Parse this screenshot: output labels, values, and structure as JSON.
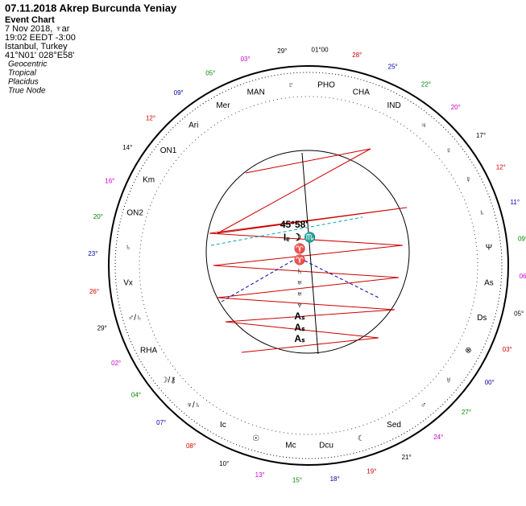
{
  "header": {
    "title": "07.11.2018 Akrep Burcunda Yeniay",
    "subtitle": "Event Chart",
    "date": "7 Nov 2018, ♆ar",
    "time": "19:02  EEDT  -3:00",
    "place": "Istanbul, Turkey",
    "coords": "41°N01' 028°E58'",
    "settings": [
      "Geocentric",
      "Tropical",
      "Placidus",
      "True Node"
    ]
  },
  "center_label": "45°58'",
  "points": [
    "PHO",
    "CHA",
    "IND",
    "♃",
    "♀",
    "☿",
    "♄",
    "Ψ",
    "As",
    "Ds",
    "⊗",
    "♅",
    "♂",
    "Sed",
    "☾",
    "Dcu",
    "Mc",
    "☉",
    "Ic",
    "♆/♄",
    "☽/⚷",
    "RHA",
    "♂/♄",
    "Vx",
    "♄",
    "ON2",
    "Km",
    "ON1",
    "Ari",
    "Mer",
    "MAN",
    "♇"
  ],
  "degrees": [
    "01°00",
    "28°",
    "25°",
    "22°",
    "20°",
    "17°",
    "12°",
    "11°",
    "09°",
    "06°",
    "05°",
    "03°",
    "00°",
    "27°",
    "24°",
    "21°",
    "19°",
    "18°",
    "15°",
    "13°",
    "10°",
    "08°",
    "07°",
    "04°",
    "02°",
    "29°",
    "26°",
    "23°",
    "20°",
    "16°",
    "14°",
    "12°",
    "09°",
    "05°",
    "03°",
    "29°"
  ],
  "inner_symbols": [
    "Iₑ ☽ ♏",
    "♈",
    "♈",
    "♄",
    "♅",
    "♅",
    "♆",
    "Aₛ",
    "Aₛ",
    "Aₛ"
  ]
}
